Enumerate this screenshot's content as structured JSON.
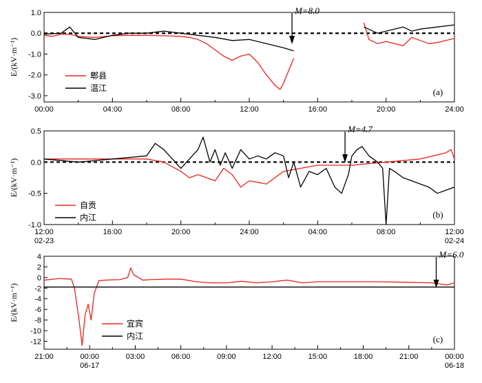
{
  "chart_data": [
    {
      "type": "line",
      "panel_label": "(a)",
      "ylabel": "E/(kV·m⁻¹)",
      "ylim": [
        -3.3,
        1.0
      ],
      "yticks": [
        "1.0",
        "0.0",
        "-1.0",
        "-2.0",
        "-3.0"
      ],
      "ytick_values": [
        1.0,
        0.0,
        -1.0,
        -2.0,
        -3.0
      ],
      "xlim": [
        0,
        24
      ],
      "xticks": [
        "00:00",
        "04:00",
        "08:00",
        "12:00",
        "16:00",
        "20:00",
        "24:00"
      ],
      "xtick_values": [
        0,
        4,
        8,
        12,
        16,
        20,
        24
      ],
      "xticks_sub": [],
      "annotation": {
        "label": "M=8.0",
        "x": 14.5
      },
      "zero_line": true,
      "series": [
        {
          "name": "郫县",
          "color": "#e8231b",
          "segments": [
            [
              [
                0.0,
                -0.1
              ],
              [
                0.5,
                -0.15
              ],
              [
                1.0,
                -0.05
              ],
              [
                1.5,
                -0.05
              ],
              [
                2.0,
                -0.15
              ],
              [
                2.5,
                -0.18
              ],
              [
                3.0,
                -0.2
              ],
              [
                4.0,
                -0.12
              ],
              [
                5.0,
                -0.1
              ],
              [
                6.0,
                -0.1
              ],
              [
                7.0,
                -0.12
              ],
              [
                8.0,
                -0.15
              ],
              [
                8.5,
                -0.2
              ],
              [
                9.0,
                -0.3
              ],
              [
                9.5,
                -0.5
              ],
              [
                10.0,
                -0.8
              ],
              [
                10.5,
                -1.1
              ],
              [
                11.0,
                -1.3
              ],
              [
                11.5,
                -1.1
              ],
              [
                12.0,
                -1.0
              ],
              [
                12.5,
                -1.4
              ],
              [
                13.0,
                -2.0
              ],
              [
                13.5,
                -2.5
              ],
              [
                13.8,
                -2.7
              ],
              [
                14.0,
                -2.4
              ],
              [
                14.3,
                -1.8
              ],
              [
                14.6,
                -1.2
              ]
            ],
            [
              [
                18.7,
                0.5
              ],
              [
                19.0,
                -0.3
              ],
              [
                19.5,
                -0.5
              ],
              [
                20.0,
                -0.4
              ],
              [
                20.5,
                -0.5
              ],
              [
                21.0,
                -0.6
              ],
              [
                21.5,
                -0.2
              ],
              [
                22.0,
                -0.35
              ],
              [
                22.5,
                -0.5
              ],
              [
                23.0,
                -0.45
              ],
              [
                23.5,
                -0.35
              ],
              [
                24.0,
                -0.25
              ]
            ]
          ]
        },
        {
          "name": "温江",
          "color": "#000000",
          "segments": [
            [
              [
                0.0,
                -0.05
              ],
              [
                1.0,
                0.0
              ],
              [
                1.5,
                0.3
              ],
              [
                2.0,
                -0.2
              ],
              [
                3.0,
                -0.3
              ],
              [
                4.0,
                -0.1
              ],
              [
                5.0,
                0.0
              ],
              [
                6.0,
                0.0
              ],
              [
                7.0,
                0.1
              ],
              [
                8.0,
                0.0
              ],
              [
                9.0,
                -0.1
              ],
              [
                10.0,
                -0.2
              ],
              [
                11.0,
                -0.35
              ],
              [
                12.0,
                -0.3
              ],
              [
                13.0,
                -0.5
              ],
              [
                14.0,
                -0.7
              ],
              [
                14.6,
                -0.85
              ]
            ],
            [
              [
                18.7,
                0.3
              ],
              [
                19.5,
                0.0
              ],
              [
                20.0,
                0.1
              ],
              [
                21.0,
                0.3
              ],
              [
                21.5,
                0.1
              ],
              [
                22.0,
                0.2
              ],
              [
                23.0,
                0.3
              ],
              [
                24.0,
                0.4
              ]
            ]
          ]
        }
      ]
    },
    {
      "type": "line",
      "panel_label": "(b)",
      "ylabel": "E/(kV·m⁻¹)",
      "ylim": [
        -1.0,
        0.5
      ],
      "yticks": [
        "0.5",
        "0.0",
        "-0.5",
        "-1.0"
      ],
      "ytick_values": [
        0.5,
        0.0,
        -0.5,
        -1.0
      ],
      "xlim": [
        12,
        36
      ],
      "xticks": [
        "12:00",
        "16:00",
        "20:00",
        "24:00",
        "04:00",
        "08:00",
        "12:00"
      ],
      "xtick_values": [
        12,
        16,
        20,
        24,
        28,
        32,
        36
      ],
      "xticks_sub": [
        "02-23",
        "",
        "",
        "",
        "",
        "",
        "02-24"
      ],
      "annotation": {
        "label": "M=4.7",
        "x": 29.6
      },
      "zero_line": true,
      "series": [
        {
          "name": "自贡",
          "color": "#e8231b",
          "segments": [
            [
              [
                12.0,
                0.05
              ],
              [
                14.0,
                0.05
              ],
              [
                16.0,
                0.05
              ],
              [
                18.0,
                0.05
              ],
              [
                19.0,
                0.0
              ],
              [
                20.0,
                -0.15
              ],
              [
                20.5,
                -0.25
              ],
              [
                21.0,
                -0.2
              ],
              [
                22.0,
                -0.3
              ],
              [
                22.5,
                -0.1
              ],
              [
                23.0,
                -0.2
              ],
              [
                23.5,
                -0.4
              ],
              [
                24.0,
                -0.3
              ],
              [
                25.0,
                -0.35
              ],
              [
                26.0,
                -0.15
              ],
              [
                27.0,
                -0.1
              ],
              [
                28.0,
                -0.05
              ],
              [
                30.0,
                -0.05
              ],
              [
                32.0,
                0.0
              ],
              [
                34.0,
                0.05
              ],
              [
                35.5,
                0.15
              ],
              [
                35.8,
                0.2
              ],
              [
                36.0,
                0.05
              ]
            ]
          ]
        },
        {
          "name": "内江",
          "color": "#000000",
          "segments": [
            [
              [
                12.0,
                0.05
              ],
              [
                14.0,
                0.0
              ],
              [
                16.0,
                0.05
              ],
              [
                18.0,
                0.1
              ],
              [
                18.5,
                0.3
              ],
              [
                19.0,
                0.2
              ],
              [
                19.5,
                0.05
              ],
              [
                20.0,
                -0.1
              ],
              [
                20.5,
                0.05
              ],
              [
                21.0,
                0.2
              ],
              [
                21.3,
                0.4
              ],
              [
                21.7,
                0.0
              ],
              [
                22.0,
                0.2
              ],
              [
                22.3,
                -0.05
              ],
              [
                22.6,
                0.15
              ],
              [
                23.0,
                -0.1
              ],
              [
                23.5,
                0.2
              ],
              [
                24.0,
                0.05
              ],
              [
                24.5,
                0.1
              ],
              [
                25.0,
                0.05
              ],
              [
                25.5,
                0.15
              ],
              [
                26.0,
                0.1
              ],
              [
                26.3,
                -0.25
              ],
              [
                26.6,
                0.0
              ],
              [
                27.0,
                -0.4
              ],
              [
                27.5,
                -0.15
              ],
              [
                28.0,
                -0.2
              ],
              [
                28.5,
                -0.1
              ],
              [
                29.0,
                -0.4
              ],
              [
                29.4,
                -0.5
              ],
              [
                29.8,
                -0.2
              ],
              [
                30.0,
                0.1
              ],
              [
                30.3,
                0.2
              ],
              [
                30.6,
                0.25
              ],
              [
                31.0,
                0.1
              ],
              [
                31.5,
                0.0
              ],
              [
                31.8,
                -0.1
              ],
              [
                32.0,
                -1.0
              ],
              [
                32.2,
                -0.1
              ],
              [
                32.5,
                -0.15
              ],
              [
                33.0,
                -0.25
              ],
              [
                33.5,
                -0.3
              ],
              [
                34.0,
                -0.35
              ],
              [
                34.5,
                -0.4
              ],
              [
                35.0,
                -0.5
              ],
              [
                35.5,
                -0.45
              ],
              [
                36.0,
                -0.4
              ]
            ]
          ]
        }
      ]
    },
    {
      "type": "line",
      "panel_label": "(c)",
      "ylabel": "E/(kV·m⁻¹)",
      "ylim": [
        -13.5,
        4.0
      ],
      "yticks": [
        "4",
        "2",
        "0",
        "-2",
        "-4",
        "-6",
        "-8",
        "-10",
        "-12"
      ],
      "ytick_values": [
        4,
        2,
        0,
        -2,
        -4,
        -6,
        -8,
        -10,
        -12
      ],
      "xlim": [
        21,
        48
      ],
      "xticks": [
        "21:00",
        "00:00",
        "03:00",
        "06:00",
        "09:00",
        "12:00",
        "15:00",
        "18:00",
        "21:00",
        "00:00"
      ],
      "xtick_values": [
        21,
        24,
        27,
        30,
        33,
        36,
        39,
        42,
        45,
        48
      ],
      "xticks_sub": [
        "",
        "06-17",
        "",
        "",
        "",
        "",
        "",
        "",
        "",
        "06-18"
      ],
      "annotation": {
        "label": "M=6.0",
        "x": 46.8
      },
      "zero_line": false,
      "series": [
        {
          "name": "宜宾",
          "color": "#e8231b",
          "segments": [
            [
              [
                21.0,
                -0.5
              ],
              [
                22.0,
                -0.2
              ],
              [
                22.8,
                -0.3
              ],
              [
                23.0,
                -2.0
              ],
              [
                23.3,
                -8.0
              ],
              [
                23.5,
                -12.8
              ],
              [
                23.7,
                -7.0
              ],
              [
                23.9,
                -5.0
              ],
              [
                24.1,
                -8.0
              ],
              [
                24.3,
                -3.0
              ],
              [
                24.6,
                -0.6
              ],
              [
                25.0,
                -0.5
              ],
              [
                26.0,
                -0.4
              ],
              [
                26.5,
                0.0
              ],
              [
                26.7,
                1.8
              ],
              [
                26.9,
                0.5
              ],
              [
                27.5,
                -0.5
              ],
              [
                28.0,
                -0.4
              ],
              [
                29.0,
                -0.3
              ],
              [
                30.0,
                -0.3
              ],
              [
                31.0,
                -0.8
              ],
              [
                32.0,
                -1.0
              ],
              [
                33.0,
                -1.0
              ],
              [
                34.0,
                -0.7
              ],
              [
                35.0,
                -1.0
              ],
              [
                36.0,
                -0.8
              ],
              [
                37.0,
                -0.5
              ],
              [
                38.0,
                -1.0
              ],
              [
                39.0,
                -0.8
              ],
              [
                41.0,
                -0.8
              ],
              [
                43.0,
                -0.8
              ],
              [
                45.0,
                -0.9
              ],
              [
                46.5,
                -1.0
              ],
              [
                47.5,
                -1.4
              ],
              [
                48.0,
                -1.0
              ]
            ]
          ]
        },
        {
          "name": "内江",
          "color": "#000000",
          "segments": [
            [
              [
                21.0,
                -1.8
              ],
              [
                48.0,
                -1.8
              ]
            ]
          ]
        }
      ]
    }
  ]
}
